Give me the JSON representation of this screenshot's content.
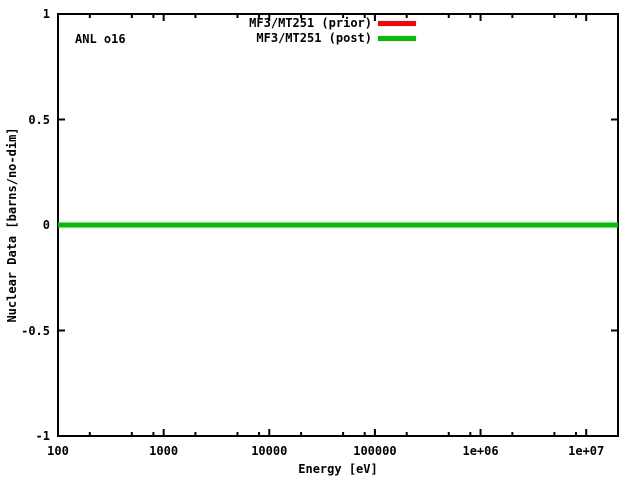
{
  "window": {
    "background": "#ffffff",
    "text_color": "#000000"
  },
  "chart_data": {
    "type": "line",
    "title": "",
    "xlabel": "Energy [eV]",
    "ylabel": "Nuclear Data [barns/no-dim]",
    "annotation": "ANL o16",
    "x_scale": "log",
    "y_scale": "linear",
    "xlim": [
      100,
      20000000
    ],
    "ylim": [
      -1,
      1
    ],
    "grid": false,
    "legend_position": "top-right-inside",
    "x_ticks": [
      {
        "v": 100,
        "label": "100"
      },
      {
        "v": 1000,
        "label": "1000"
      },
      {
        "v": 10000,
        "label": "10000"
      },
      {
        "v": 100000,
        "label": "100000"
      },
      {
        "v": 1000000,
        "label": "1e+06"
      },
      {
        "v": 10000000,
        "label": "1e+07"
      }
    ],
    "x_minor_mults": [
      2,
      5,
      8
    ],
    "y_ticks": [
      {
        "v": 1,
        "label": "1"
      },
      {
        "v": 0.5,
        "label": "0.5"
      },
      {
        "v": 0,
        "label": "0"
      },
      {
        "v": -0.5,
        "label": "-0.5"
      },
      {
        "v": -1,
        "label": "-1"
      }
    ],
    "series": [
      {
        "name": "MF3/MT251 (prior)",
        "color": "#ff0000",
        "x": [
          100,
          20000000
        ],
        "y": [
          0,
          0
        ]
      },
      {
        "name": "MF3/MT251 (post)",
        "color": "#00c000",
        "x": [
          100,
          20000000
        ],
        "y": [
          0,
          0
        ]
      }
    ],
    "axis_color": "#000000"
  }
}
